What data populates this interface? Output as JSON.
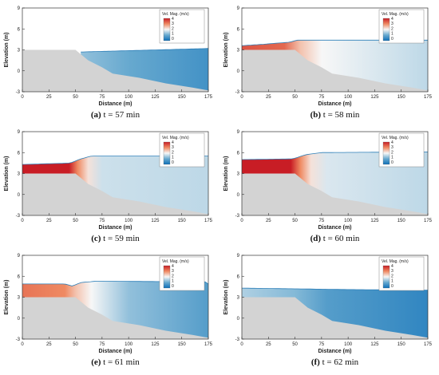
{
  "chart_data": [
    {
      "type": "area",
      "panel_label": "(a)",
      "caption_text": " t = 57 min",
      "xlabel": "Distance (m)",
      "ylabel": "Elevation (m)",
      "xlim": [
        0,
        175
      ],
      "ylim": [
        -3,
        9
      ],
      "x_ticks": [
        "0",
        "25",
        "50",
        "75",
        "100",
        "125",
        "150",
        "175"
      ],
      "y_ticks": [
        "-3",
        "0",
        "3",
        "6",
        "9"
      ],
      "legend": {
        "title": "Vel. Mag. (m/s)",
        "ticks": [
          "4",
          "3",
          "2",
          "1",
          "0"
        ],
        "range": [
          0,
          4
        ],
        "placement": "top-right"
      },
      "bed_profile": {
        "x": [
          0,
          50,
          62,
          75,
          85,
          110,
          135,
          160,
          175
        ],
        "y": [
          3,
          3,
          1.5,
          0.5,
          -0.4,
          -1.0,
          -1.8,
          -2.4,
          -2.8
        ]
      },
      "water_surface": {
        "x": [
          0,
          50,
          55,
          175
        ],
        "y": [
          null,
          null,
          2.7,
          3.2
        ]
      },
      "velocity_profile": {
        "x": [
          55,
          100,
          175
        ],
        "v": [
          1.3,
          1.0,
          0.6
        ]
      }
    },
    {
      "type": "area",
      "panel_label": "(b)",
      "caption_text": " t = 58 min",
      "xlabel": "Distance (m)",
      "ylabel": "Elevation (m)",
      "xlim": [
        0,
        175
      ],
      "ylim": [
        -3,
        9
      ],
      "x_ticks": [
        "0",
        "25",
        "50",
        "75",
        "100",
        "125",
        "150",
        "175"
      ],
      "y_ticks": [
        "-3",
        "0",
        "3",
        "6",
        "9"
      ],
      "legend": {
        "title": "Vel. Mag. (m/s)",
        "ticks": [
          "4",
          "3",
          "2",
          "1",
          "0"
        ],
        "range": [
          0,
          4
        ],
        "placement": "top-right"
      },
      "bed_profile": {
        "x": [
          0,
          50,
          62,
          75,
          85,
          110,
          135,
          160,
          175
        ],
        "y": [
          3,
          3,
          1.5,
          0.5,
          -0.4,
          -1.0,
          -1.8,
          -2.4,
          -2.8
        ]
      },
      "water_surface": {
        "x": [
          0,
          20,
          45,
          52,
          175
        ],
        "y": [
          3.6,
          3.8,
          4.1,
          4.4,
          4.4
        ]
      },
      "velocity_profile": {
        "x": [
          0,
          40,
          55,
          75,
          175
        ],
        "v": [
          3.5,
          3.3,
          2.5,
          2.0,
          1.6
        ]
      }
    },
    {
      "type": "area",
      "panel_label": "(c)",
      "caption_text": " t = 59 min",
      "xlabel": "Distance (m)",
      "ylabel": "Elevation (m)",
      "xlim": [
        0,
        175
      ],
      "ylim": [
        -3,
        9
      ],
      "x_ticks": [
        "0",
        "25",
        "50",
        "75",
        "100",
        "125",
        "150",
        "175"
      ],
      "y_ticks": [
        "-3",
        "0",
        "3",
        "6",
        "9"
      ],
      "legend": {
        "title": "Vel. Mag. (m/s)",
        "ticks": [
          "4",
          "3",
          "2",
          "1",
          "0"
        ],
        "range": [
          0,
          4
        ],
        "placement": "top-right"
      },
      "bed_profile": {
        "x": [
          0,
          50,
          62,
          75,
          85,
          110,
          135,
          160,
          175
        ],
        "y": [
          3,
          3,
          1.5,
          0.5,
          -0.4,
          -1.0,
          -1.8,
          -2.4,
          -2.8
        ]
      },
      "water_surface": {
        "x": [
          0,
          45,
          55,
          65,
          175
        ],
        "y": [
          4.3,
          4.5,
          5.1,
          5.5,
          5.5
        ]
      },
      "velocity_profile": {
        "x": [
          0,
          44,
          52,
          62,
          75,
          175
        ],
        "v": [
          4.0,
          4.0,
          3.0,
          2.2,
          1.7,
          1.6
        ]
      }
    },
    {
      "type": "area",
      "panel_label": "(d)",
      "caption_text": " t = 60 min",
      "xlabel": "Distance (m)",
      "ylabel": "Elevation (m)",
      "xlim": [
        0,
        175
      ],
      "ylim": [
        -3,
        9
      ],
      "x_ticks": [
        "0",
        "25",
        "50",
        "75",
        "100",
        "125",
        "150",
        "175"
      ],
      "y_ticks": [
        "-3",
        "0",
        "3",
        "6",
        "9"
      ],
      "legend": {
        "title": "Vel. Mag. (m/s)",
        "ticks": [
          "4",
          "3",
          "2",
          "1",
          "0"
        ],
        "range": [
          0,
          4
        ],
        "placement": "top-right"
      },
      "bed_profile": {
        "x": [
          0,
          50,
          62,
          75,
          85,
          110,
          135,
          160,
          175
        ],
        "y": [
          3,
          3,
          1.5,
          0.5,
          -0.4,
          -1.0,
          -1.8,
          -2.4,
          -2.8
        ]
      },
      "water_surface": {
        "x": [
          0,
          48,
          60,
          75,
          175
        ],
        "y": [
          5.0,
          5.1,
          5.7,
          6.0,
          6.1
        ]
      },
      "velocity_profile": {
        "x": [
          0,
          46,
          55,
          65,
          80,
          175
        ],
        "v": [
          4.0,
          4.0,
          3.0,
          2.2,
          1.8,
          1.6
        ]
      }
    },
    {
      "type": "area",
      "panel_label": "(e)",
      "caption_text": " t = 61 min",
      "xlabel": "Distance (m)",
      "ylabel": "Elevation (m)",
      "xlim": [
        0,
        175
      ],
      "ylim": [
        -3,
        9
      ],
      "x_ticks": [
        "0",
        "25",
        "50",
        "75",
        "100",
        "125",
        "150",
        "175"
      ],
      "y_ticks": [
        "-3",
        "0",
        "3",
        "6",
        "9"
      ],
      "legend": {
        "title": "Vel. Mag. (m/s)",
        "ticks": [
          "4",
          "3",
          "2",
          "1",
          "0"
        ],
        "range": [
          0,
          4
        ],
        "placement": "top-right"
      },
      "bed_profile": {
        "x": [
          0,
          50,
          62,
          75,
          85,
          110,
          135,
          160,
          175
        ],
        "y": [
          3,
          3,
          1.5,
          0.5,
          -0.4,
          -1.0,
          -1.8,
          -2.4,
          -2.8
        ]
      },
      "water_surface": {
        "x": [
          0,
          40,
          47,
          55,
          70,
          172,
          175
        ],
        "y": [
          4.9,
          4.9,
          4.6,
          5.1,
          5.3,
          5.2,
          4.9
        ]
      },
      "velocity_profile": {
        "x": [
          0,
          40,
          50,
          65,
          100,
          175
        ],
        "v": [
          3.2,
          3.0,
          2.5,
          2.0,
          1.3,
          0.8
        ]
      }
    },
    {
      "type": "area",
      "panel_label": "(f)",
      "caption_text": " t = 62 min",
      "xlabel": "Distance (m)",
      "ylabel": "Elevation (m)",
      "xlim": [
        0,
        175
      ],
      "ylim": [
        -3,
        9
      ],
      "x_ticks": [
        "0",
        "25",
        "50",
        "75",
        "100",
        "125",
        "150",
        "175"
      ],
      "y_ticks": [
        "-3",
        "0",
        "3",
        "6",
        "9"
      ],
      "legend": {
        "title": "Vel. Mag. (m/s)",
        "ticks": [
          "4",
          "3",
          "2",
          "1",
          "0"
        ],
        "range": [
          0,
          4
        ],
        "placement": "top-right"
      },
      "bed_profile": {
        "x": [
          0,
          50,
          62,
          75,
          85,
          110,
          135,
          160,
          175
        ],
        "y": [
          3,
          3,
          1.5,
          0.5,
          -0.4,
          -1.0,
          -1.8,
          -2.4,
          -2.8
        ]
      },
      "water_surface": {
        "x": [
          0,
          50,
          100,
          175
        ],
        "y": [
          4.3,
          4.2,
          4.1,
          4.0
        ]
      },
      "velocity_profile": {
        "x": [
          0,
          50,
          80,
          175
        ],
        "v": [
          1.5,
          1.2,
          0.8,
          0.4
        ]
      }
    }
  ]
}
